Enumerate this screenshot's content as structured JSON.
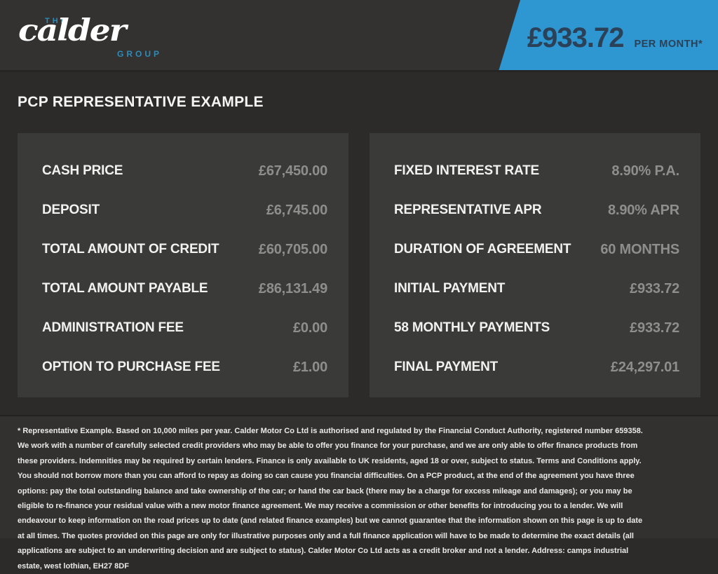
{
  "header": {
    "brand": {
      "the": "THE",
      "name": "calder",
      "group": "GROUP"
    },
    "banner": {
      "amount": "£933.72",
      "per": "PER MONTH*"
    }
  },
  "page_title": "PCP REPRESENTATIVE EXAMPLE",
  "finance_example": {
    "left": {
      "rows": [
        {
          "label": "CASH PRICE",
          "value": "£67,450.00"
        },
        {
          "label": "DEPOSIT",
          "value": "£6,745.00"
        },
        {
          "label": "TOTAL AMOUNT OF CREDIT",
          "value": "£60,705.00"
        },
        {
          "label": "TOTAL AMOUNT PAYABLE",
          "value": "£86,131.49"
        },
        {
          "label": "ADMINISTRATION FEE",
          "value": "£0.00"
        },
        {
          "label": "OPTION TO PURCHASE FEE",
          "value": "£1.00"
        }
      ]
    },
    "right": {
      "rows": [
        {
          "label": "FIXED INTEREST RATE",
          "value": "8.90% P.A."
        },
        {
          "label": "REPRESENTATIVE APR",
          "value": "8.90% APR"
        },
        {
          "label": "DURATION OF AGREEMENT",
          "value": "60 MONTHS"
        },
        {
          "label": "INITIAL PAYMENT",
          "value": "£933.72"
        },
        {
          "label": "58 MONTHLY PAYMENTS",
          "value": "£933.72"
        },
        {
          "label": "FINAL PAYMENT",
          "value": "£24,297.01"
        }
      ]
    }
  },
  "footer": {
    "disclaimer": "* Representative Example. Based on 10,000 miles per year. Calder Motor Co Ltd is authorised and regulated by the Financial Conduct Authority, registered number 659358. We work with a number of carefully selected credit providers who may be able to offer you finance for your purchase, and we are only able to offer finance products from these providers. Indemnities may be required by certain lenders. Finance is only available to UK residents, aged 18 or over, subject to status. Terms and Conditions apply. You should not borrow more than you can afford to repay as doing so can cause you financial difficulties. On a PCP product, at the end of the agreement you have three options: pay the total outstanding balance and take ownership of the car; or hand the car back (there may be a charge for excess mileage and damages); or you may be eligible to re-finance your residual value with a new motor finance agreement. We may receive a commission or other benefits for introducing you to a lender. We will endeavour to keep information on the road prices up to date (and related finance examples) but we cannot guarantee that the information shown on this page is up to date at all times. The quotes provided on this page are only for illustrative purposes only and a full finance application will have to be made to determine the exact details (all applications are subject to an underwriting decision and are subject to status). Calder Motor Co Ltd acts as a credit broker and not a lender. Address: camps industrial estate, west lothian, EH27 8DF"
  },
  "colors": {
    "accent_blue": "#2e96d1",
    "banner_text": "#2b4157",
    "logo_blue": "#2e8bb8",
    "value_gray": "#8e8e8e"
  }
}
